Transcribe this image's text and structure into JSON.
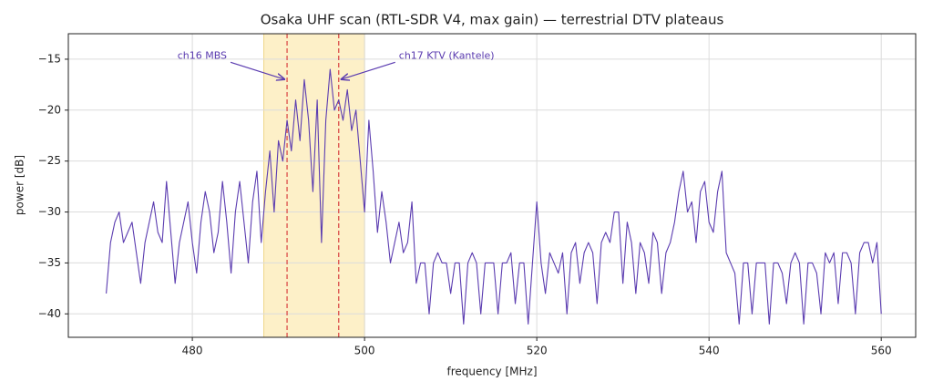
{
  "chart_data": {
    "type": "line",
    "title": "Osaka UHF scan  (RTL-SDR V4, max gain) — terrestrial DTV plateaus",
    "x_label": "frequency [MHz]",
    "y_label": "power [dB]",
    "xlim": [
      465.6,
      564.0
    ],
    "ylim": [
      -42.3,
      -12.5
    ],
    "xticks": [
      480,
      500,
      520,
      540,
      560
    ],
    "yticks": [
      {
        "value": -40,
        "label": "−40"
      },
      {
        "value": -35,
        "label": "−35"
      },
      {
        "value": -30,
        "label": "−30"
      },
      {
        "value": -25,
        "label": "−25"
      },
      {
        "value": -20,
        "label": "−20"
      },
      {
        "value": -15,
        "label": "−15"
      }
    ],
    "grid": true,
    "span": [
      488.3,
      500
    ],
    "span_color": "#fdf0c8",
    "vlines": [
      491,
      497
    ],
    "vline_color": "#d94040",
    "annotations": [
      {
        "text": "ch16 MBS",
        "x": 491,
        "y": -17,
        "side": "left"
      },
      {
        "text": "ch17 KTV (Kantele)",
        "x": 497,
        "y": -17,
        "side": "right"
      }
    ],
    "x": [
      470,
      470.5,
      471,
      471.5,
      472,
      472.5,
      473,
      473.5,
      474,
      474.5,
      475,
      475.5,
      476,
      476.5,
      477,
      477.5,
      478,
      478.5,
      479,
      479.5,
      480,
      480.5,
      481,
      481.5,
      482,
      482.5,
      483,
      483.5,
      484,
      484.5,
      485,
      485.5,
      486,
      486.5,
      487,
      487.5,
      488,
      488.5,
      489,
      489.5,
      490,
      490.5,
      491,
      491.5,
      492,
      492.5,
      493,
      493.5,
      494,
      494.5,
      495,
      495.5,
      496,
      496.5,
      497,
      497.5,
      498,
      498.5,
      499,
      499.5,
      500,
      500.5,
      501,
      501.5,
      502,
      502.5,
      503,
      503.5,
      504,
      504.5,
      505,
      505.5,
      506,
      506.5,
      507,
      507.5,
      508,
      508.5,
      509,
      509.5,
      510,
      510.5,
      511,
      511.5,
      512,
      512.5,
      513,
      513.5,
      514,
      514.5,
      515,
      515.5,
      516,
      516.5,
      517,
      517.5,
      518,
      518.5,
      519,
      519.5,
      520,
      520.5,
      521,
      521.5,
      522,
      522.5,
      523,
      523.5,
      524,
      524.5,
      525,
      525.5,
      526,
      526.5,
      527,
      527.5,
      528,
      528.5,
      529,
      529.5,
      530,
      530.5,
      531,
      531.5,
      532,
      532.5,
      533,
      533.5,
      534,
      534.5,
      535,
      535.5,
      536,
      536.5,
      537,
      537.5,
      538,
      538.5,
      539,
      539.5,
      540,
      540.5,
      541,
      541.5,
      542,
      542.5,
      543,
      543.5,
      544,
      544.5,
      545,
      545.5,
      546,
      546.5,
      547,
      547.5,
      548,
      548.5,
      549,
      549.5,
      550,
      550.5,
      551,
      551.5,
      552,
      552.5,
      553,
      553.5,
      554,
      554.5,
      555,
      555.5,
      556,
      556.5,
      557,
      557.5,
      558,
      558.5,
      559,
      559.5,
      560
    ],
    "series": [
      {
        "name": "power",
        "color": "#5b3cb0",
        "values": [
          -38,
          -33,
          -31,
          -30,
          -33,
          -32,
          -31,
          -34,
          -37,
          -33,
          -31,
          -29,
          -32,
          -33,
          -27,
          -32,
          -37,
          -33,
          -31,
          -29,
          -33,
          -36,
          -31,
          -28,
          -30,
          -34,
          -32,
          -27,
          -31,
          -36,
          -30,
          -27,
          -31,
          -35,
          -29,
          -26,
          -33,
          -28,
          -24,
          -30,
          -23,
          -25,
          -21,
          -24,
          -19,
          -23,
          -17,
          -21,
          -28,
          -19,
          -33,
          -21,
          -16,
          -20,
          -19,
          -21,
          -18,
          -22,
          -20,
          -25,
          -30,
          -21,
          -26,
          -32,
          -28,
          -31,
          -35,
          -33,
          -31,
          -34,
          -33,
          -29,
          -37,
          -35,
          -35,
          -40,
          -35,
          -34,
          -35,
          -35,
          -38,
          -35,
          -35,
          -41,
          -35,
          -34,
          -35,
          -40,
          -35,
          -35,
          -35,
          -40,
          -35,
          -35,
          -34,
          -39,
          -35,
          -35,
          -41,
          -35,
          -29,
          -35,
          -38,
          -34,
          -35,
          -36,
          -34,
          -40,
          -34,
          -33,
          -37,
          -34,
          -33,
          -34,
          -39,
          -33,
          -32,
          -33,
          -30,
          -30,
          -37,
          -31,
          -33,
          -38,
          -33,
          -34,
          -37,
          -32,
          -33,
          -38,
          -34,
          -33,
          -31,
          -28,
          -26,
          -30,
          -29,
          -33,
          -28,
          -27,
          -31,
          -32,
          -28,
          -26,
          -34,
          -35,
          -36,
          -41,
          -35,
          -35,
          -40,
          -35,
          -35,
          -35,
          -41,
          -35,
          -35,
          -36,
          -39,
          -35,
          -34,
          -35,
          -41,
          -35,
          -35,
          -36,
          -40,
          -34,
          -35,
          -34,
          -39,
          -34,
          -34,
          -35,
          -40,
          -34,
          -33,
          -33,
          -35,
          -33,
          -40
        ]
      }
    ]
  }
}
